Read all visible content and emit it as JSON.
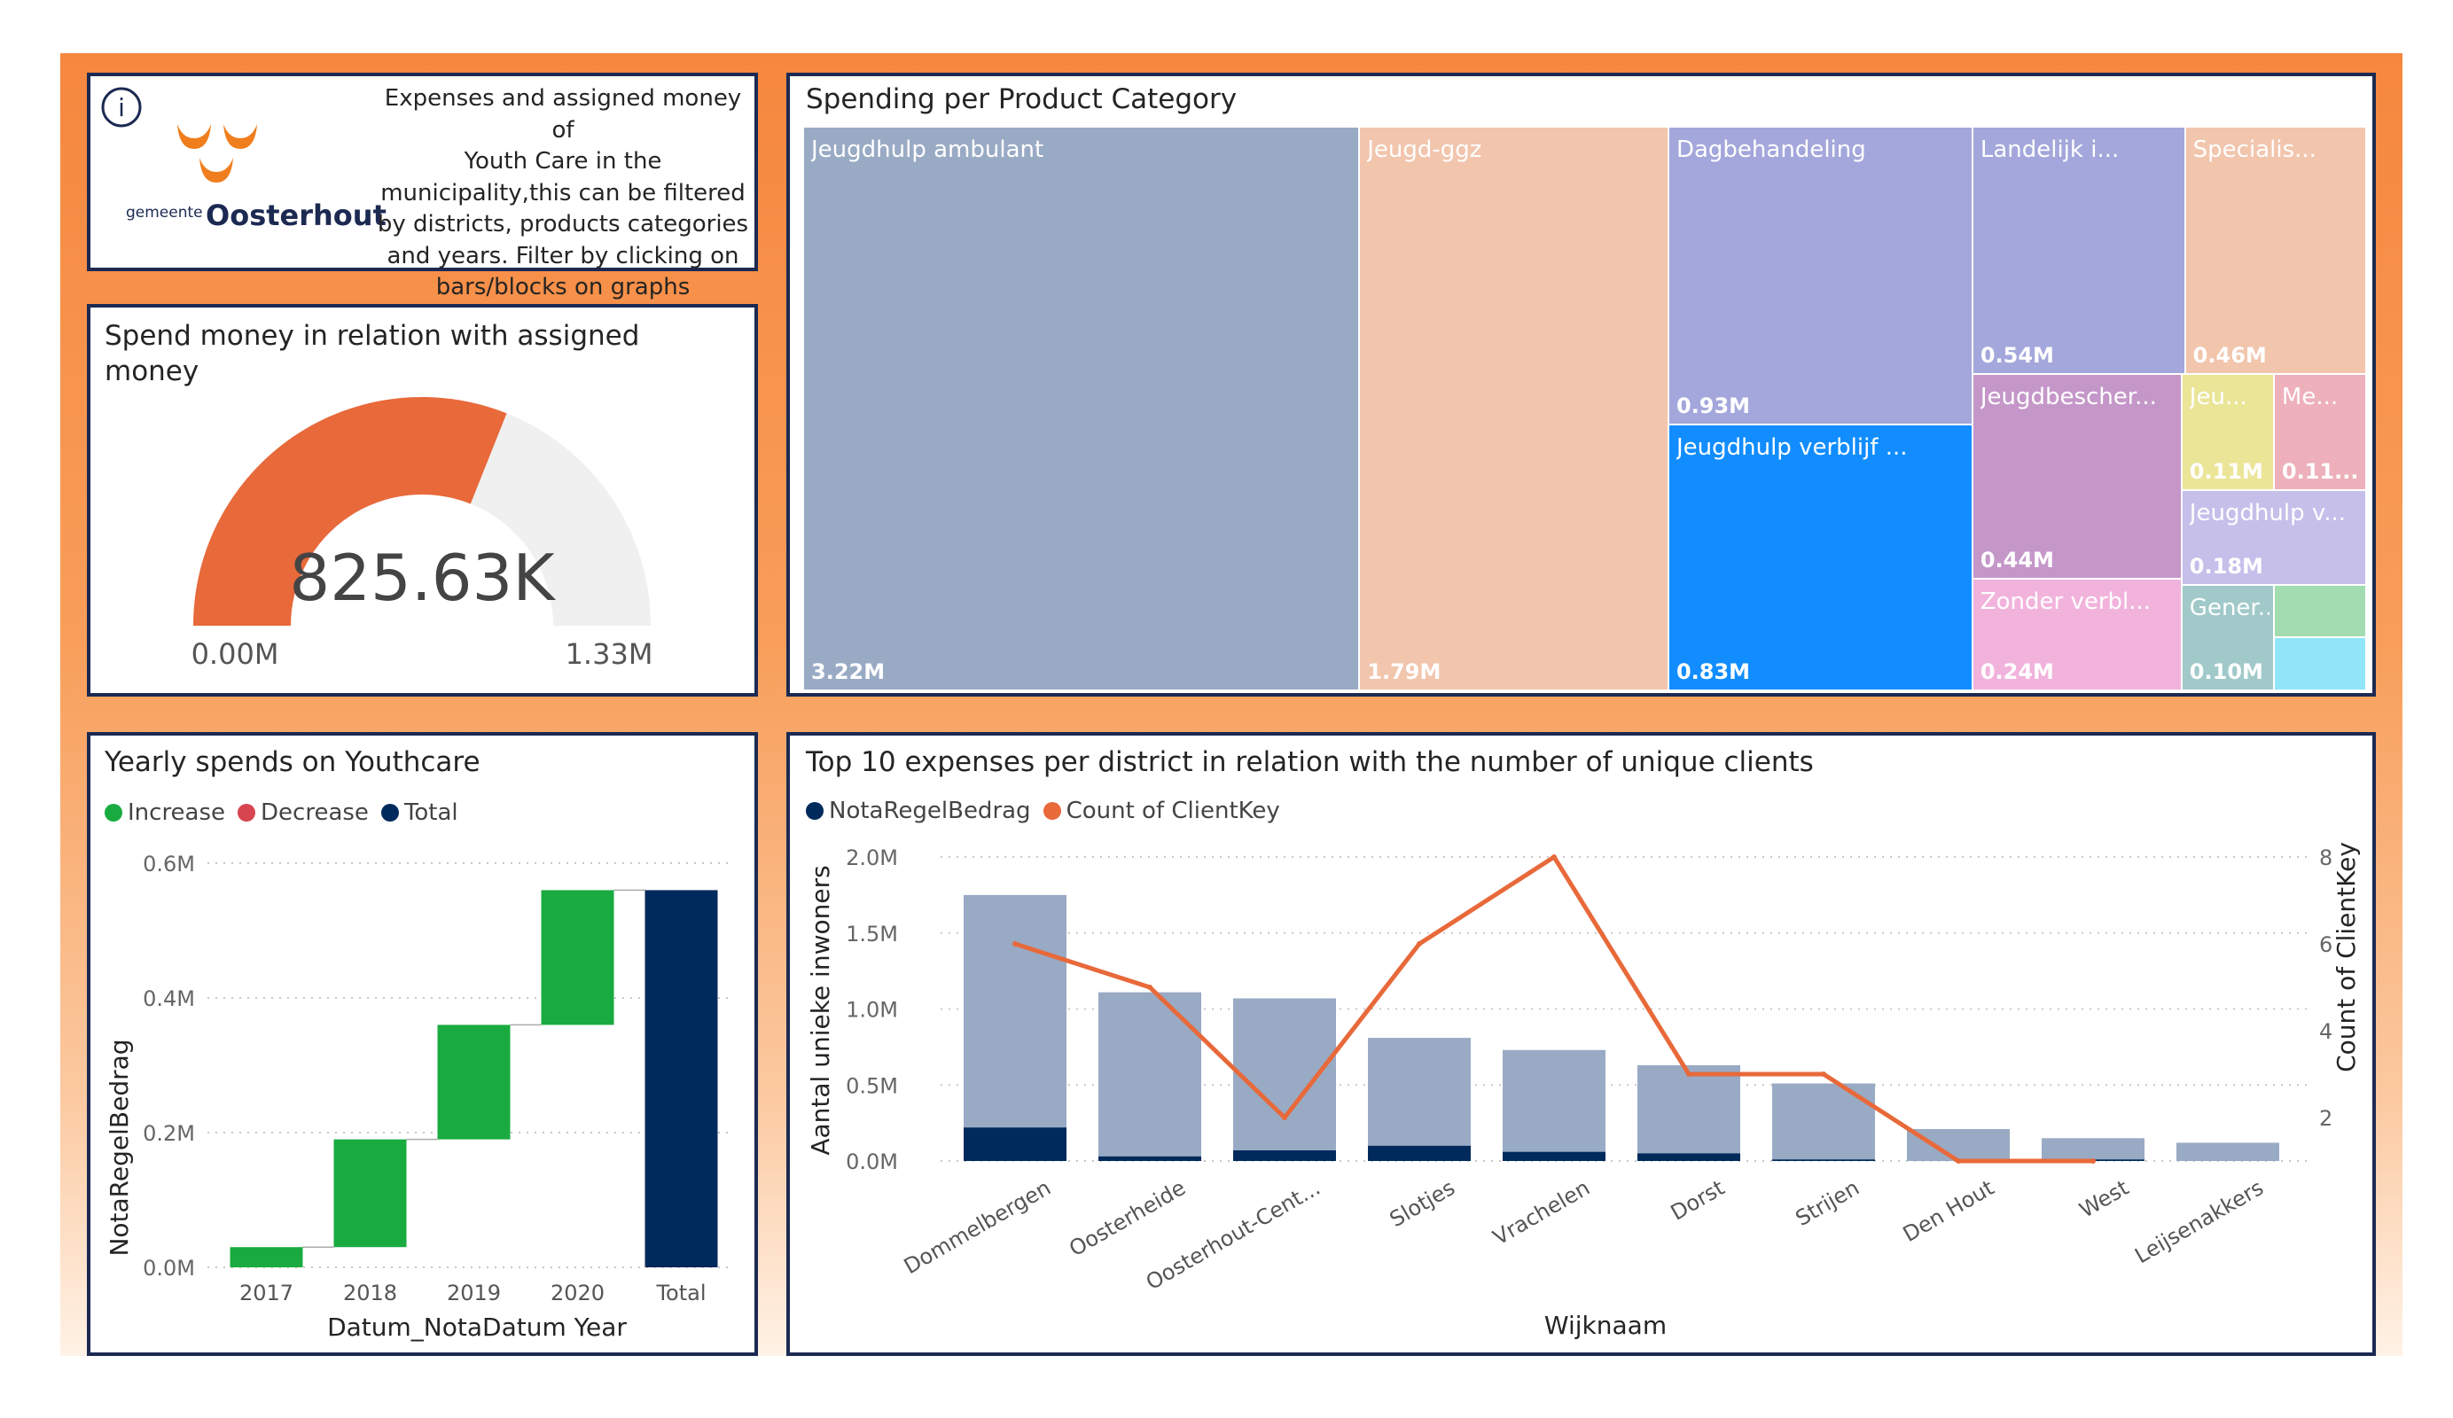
{
  "info": {
    "logo_small": "gemeente",
    "logo_name": "Oosterhout",
    "description_lines": [
      "Expenses and assigned money of",
      "Youth Care in the",
      "municipality,this can be filtered",
      "by districts, products categories",
      "and years. Filter by clicking on",
      "bars/blocks on graphs"
    ],
    "info_glyph": "i",
    "icon": "info-icon"
  },
  "gauge": {
    "title_lines": [
      "Spend money in relation with assigned",
      "money"
    ],
    "value_label": "825.63K",
    "min_label": "0.00M",
    "max_label": "1.33M",
    "value": 0.82563,
    "min": 0,
    "max": 1.33,
    "fill_color": "#e8693a",
    "track_color": "#f0f0f0"
  },
  "treemap": {
    "title": "Spending per Product Category",
    "tiles": [
      {
        "label": "Jeugdhulp ambulant",
        "value": "3.22M",
        "color": "#99aac4"
      },
      {
        "label": "Jeugd-ggz",
        "value": "1.79M",
        "color": "#f2c5ad"
      },
      {
        "label": "Dagbehandeling",
        "value": "0.93M",
        "color": "#a3a7db"
      },
      {
        "label": "Jeugdhulp verblijf ...",
        "value": "0.83M",
        "color": "#118dff"
      },
      {
        "label": "Landelijk i...",
        "value": "0.54M",
        "color": "#a3a7db"
      },
      {
        "label": "Specialis...",
        "value": "0.46M",
        "color": "#f2c5ad"
      },
      {
        "label": "Jeugdbescher...",
        "value": "0.44M",
        "color": "#c597c9"
      },
      {
        "label": "Zonder verbl...",
        "value": "0.24M",
        "color": "#f1b3dc"
      },
      {
        "label": "Jeu...",
        "value": "0.11M",
        "color": "#ebe598"
      },
      {
        "label": "Me...",
        "value": "0.11...",
        "color": "#eeb0bb"
      },
      {
        "label": "Jeugdhulp v...",
        "value": "0.18M",
        "color": "#c5bfea"
      },
      {
        "label": "Gener...",
        "value": "0.10M",
        "color": "#a1c9c9"
      },
      {
        "label": "",
        "value": "",
        "color": "#a2dcb0"
      },
      {
        "label": "",
        "value": "",
        "color": "#91e6f9"
      }
    ]
  },
  "waterfall": {
    "title": "Yearly spends on Youthcare",
    "legend": [
      {
        "label": "Increase",
        "color": "#1aab40"
      },
      {
        "label": "Decrease",
        "color": "#d64550"
      },
      {
        "label": "Total",
        "color": "#002a5c"
      }
    ],
    "ylabel": "NotaRegelBedrag",
    "xlabel": "Datum_NotaDatum Year",
    "yticks": [
      "0.0M",
      "0.2M",
      "0.4M",
      "0.6M"
    ]
  },
  "combo": {
    "title": "Top 10 expenses per district in relation with the number of unique clients",
    "legend": [
      {
        "label": "NotaRegelBedrag",
        "color": "#002a5c"
      },
      {
        "label": "Count of ClientKey",
        "color": "#e8693a"
      }
    ],
    "ylabel_left": "Aantal unieke inwoners",
    "ylabel_right": "Count of ClientKey",
    "xlabel": "Wijknaam",
    "yticks_left": [
      "0.0M",
      "0.5M",
      "1.0M",
      "1.5M",
      "2.0M"
    ],
    "yticks_right": [
      "2",
      "4",
      "6",
      "8"
    ],
    "bar_light_color": "#99aac4",
    "bar_dark_color": "#002a5c",
    "line_color": "#e8693a"
  },
  "chart_data": [
    {
      "type": "treemap",
      "title": "Spending per Product Category",
      "categories": [
        "Jeugdhulp ambulant",
        "Jeugd-ggz",
        "Dagbehandeling",
        "Jeugdhulp verblijf ...",
        "Landelijk i...",
        "Specialis...",
        "Jeugdbescher...",
        "Zonder verbl...",
        "Jeu...",
        "Me...",
        "Jeugdhulp v...",
        "Gener..."
      ],
      "values": [
        3.22,
        1.79,
        0.93,
        0.83,
        0.54,
        0.46,
        0.44,
        0.24,
        0.11,
        0.11,
        0.18,
        0.1
      ],
      "unit": "M"
    },
    {
      "type": "bar",
      "subtype": "waterfall",
      "title": "Yearly spends on Youthcare",
      "categories": [
        "2017",
        "2018",
        "2019",
        "2020",
        "Total"
      ],
      "values": [
        0.03,
        0.16,
        0.17,
        0.2,
        0.56
      ],
      "kinds": [
        "increase",
        "increase",
        "increase",
        "increase",
        "total"
      ],
      "xlabel": "Datum_NotaDatum Year",
      "ylabel": "NotaRegelBedrag",
      "ylim": [
        0,
        0.6
      ],
      "unit": "M",
      "grid": true,
      "legend": "top-left"
    },
    {
      "type": "bar",
      "subtype": "combo-bar-line",
      "title": "Top 10 expenses per district in relation with the number of unique clients",
      "categories": [
        "Dommelbergen",
        "Oosterheide",
        "Oosterhout-Cent...",
        "Slotjes",
        "Vrachelen",
        "Dorst",
        "Strijen",
        "Den Hout",
        "West",
        "Leijsenakkers"
      ],
      "series": [
        {
          "name": "NotaRegelBedrag",
          "values": [
            0.22,
            0.03,
            0.07,
            0.1,
            0.06,
            0.05,
            0.01,
            0.0,
            0.01,
            0.0
          ],
          "axis": "left"
        },
        {
          "name": "Aantal unieke inwoners",
          "values": [
            1.75,
            1.11,
            1.07,
            0.81,
            0.73,
            0.63,
            0.51,
            0.21,
            0.15,
            0.12
          ],
          "axis": "left"
        },
        {
          "name": "Count of ClientKey",
          "type": "line",
          "values": [
            6,
            5,
            2,
            6,
            8,
            3,
            3,
            1,
            1,
            null
          ],
          "axis": "right"
        }
      ],
      "xlabel": "Wijknaam",
      "ylabel": "Aantal unieke inwoners",
      "ylabel_right": "Count of ClientKey",
      "ylim": [
        0,
        2.0
      ],
      "ylim_right": [
        1,
        8
      ],
      "unit": "M",
      "grid": true,
      "legend": "top-left"
    }
  ]
}
